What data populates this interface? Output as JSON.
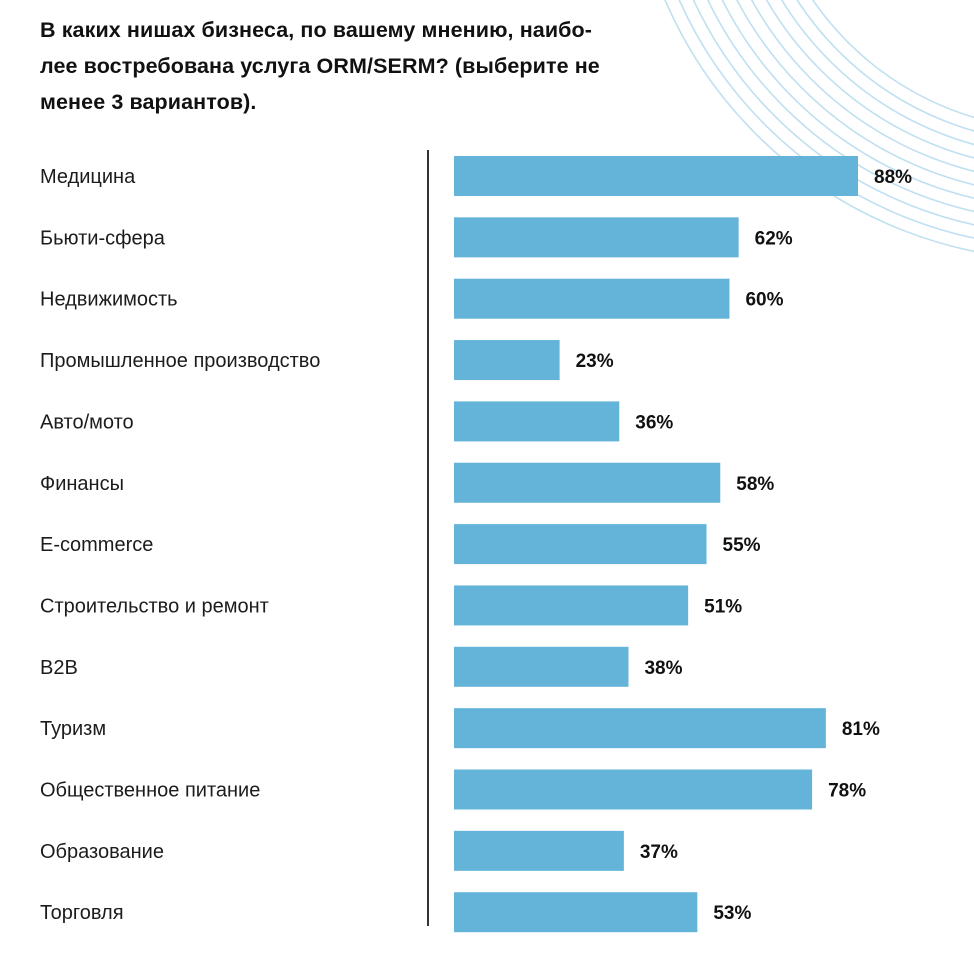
{
  "title": "В каких нишах бизнеса, по вашему мнению, наибо-лее востребована услуга ORM/SERM? (выберите не менее 3 вариантов).",
  "title_lines": [
    "В каких нишах бизнеса, по вашему мнению, наибо-",
    "лее востребована услуга ORM/SERM? (выберите не",
    "менее 3 вариантов)."
  ],
  "chart_data": {
    "type": "bar",
    "orientation": "horizontal",
    "title": "В каких нишах бизнеса, по вашему мнению, наибо-лее востребована услуга ORM/SERM? (выберите не менее 3 вариантов).",
    "categories": [
      "Медицина",
      "Бьюти-сфера",
      "Недвижимость",
      "Промышленное производство",
      "Авто/мото",
      "Финансы",
      "E-commerce",
      "Строительство и ремонт",
      "B2B",
      "Туризм",
      "Общественное питание",
      "Образование",
      "Торговля"
    ],
    "values": [
      88,
      62,
      60,
      23,
      36,
      58,
      55,
      51,
      38,
      81,
      78,
      37,
      53
    ],
    "value_labels": [
      "88%",
      "62%",
      "60%",
      "23%",
      "36%",
      "58%",
      "55%",
      "51%",
      "38%",
      "81%",
      "78%",
      "37%",
      "53%"
    ],
    "unit": "%",
    "xlim": [
      0,
      100
    ],
    "grid": false,
    "legend": "none",
    "xlabel": "",
    "ylabel": "",
    "bar_color": "#63b4d8",
    "axis_color": "#333333"
  },
  "decor_color": "#bfe0f1"
}
